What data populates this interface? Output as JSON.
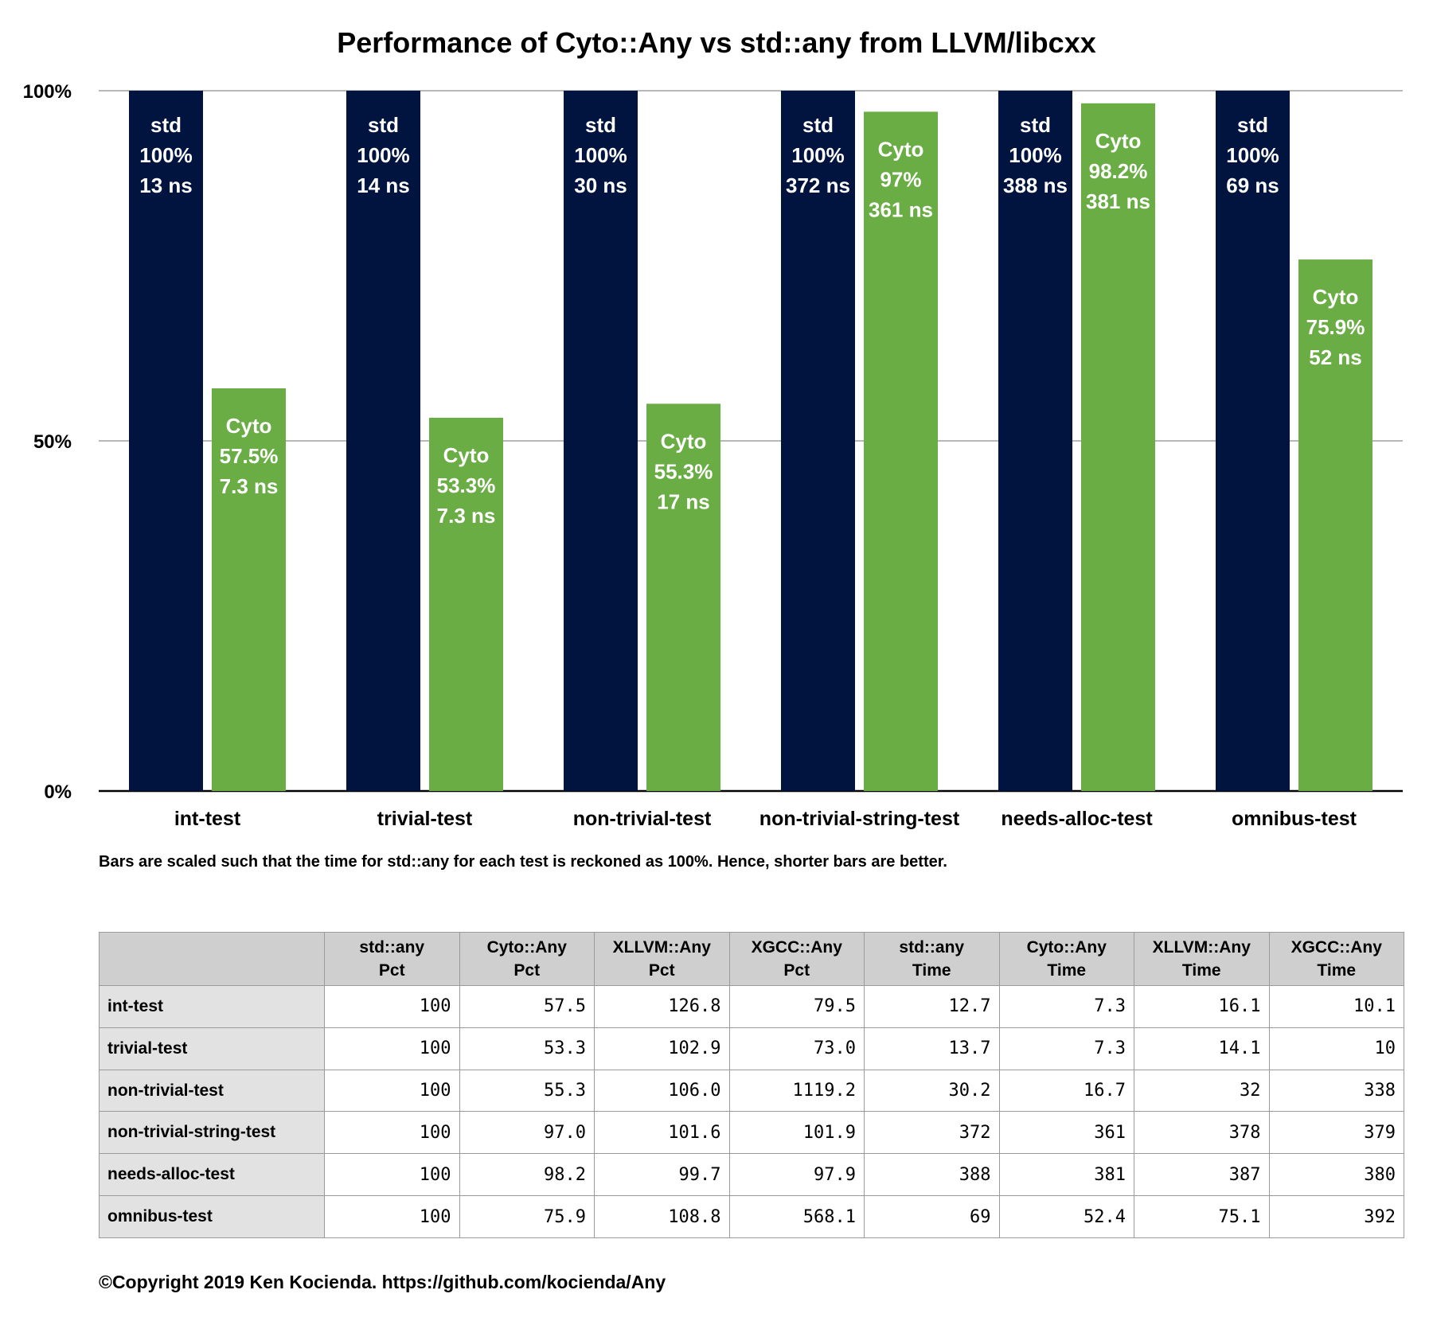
{
  "chart_data": {
    "type": "bar",
    "title": "Performance of Cyto::Any vs std::any from LLVM/libcxx",
    "categories": [
      "int-test",
      "trivial-test",
      "non-trivial-test",
      "non-trivial-string-test",
      "needs-alloc-test",
      "omnibus-test"
    ],
    "ylim": [
      0,
      100
    ],
    "yticks": [
      "0%",
      "50%",
      "100%"
    ],
    "grid": true,
    "series": [
      {
        "name": "std",
        "color": "#00143f",
        "values": [
          100,
          100,
          100,
          100,
          100,
          100
        ],
        "labels": [
          [
            "std",
            "100%",
            "13 ns"
          ],
          [
            "std",
            "100%",
            "14 ns"
          ],
          [
            "std",
            "100%",
            "30 ns"
          ],
          [
            "std",
            "100%",
            "372 ns"
          ],
          [
            "std",
            "100%",
            "388 ns"
          ],
          [
            "std",
            "100%",
            "69 ns"
          ]
        ]
      },
      {
        "name": "Cyto",
        "color": "#6aad45",
        "values": [
          57.5,
          53.3,
          55.3,
          97,
          98.2,
          75.9
        ],
        "labels": [
          [
            "Cyto",
            "57.5%",
            "7.3 ns"
          ],
          [
            "Cyto",
            "53.3%",
            "7.3 ns"
          ],
          [
            "Cyto",
            "55.3%",
            "17 ns"
          ],
          [
            "Cyto",
            "97%",
            "361 ns"
          ],
          [
            "Cyto",
            "98.2%",
            "381 ns"
          ],
          [
            "Cyto",
            "75.9%",
            "52 ns"
          ]
        ]
      }
    ]
  },
  "caption": "Bars are scaled such that the time for std::any for each test is reckoned as 100%. Hence, shorter bars are better.",
  "table": {
    "headers": [
      "",
      "std::any Pct",
      "Cyto::Any Pct",
      "XLLVM::Any Pct",
      "XGCC::Any Pct",
      "std::any Time",
      "Cyto::Any Time",
      "XLLVM::Any Time",
      "XGCC::Any Time"
    ],
    "rows": [
      [
        "int-test",
        "100",
        "57.5",
        "126.8",
        "79.5",
        "12.7",
        "7.3",
        "16.1",
        "10.1"
      ],
      [
        "trivial-test",
        "100",
        "53.3",
        "102.9",
        "73.0",
        "13.7",
        "7.3",
        "14.1",
        "10"
      ],
      [
        "non-trivial-test",
        "100",
        "55.3",
        "106.0",
        "1119.2",
        "30.2",
        "16.7",
        "32",
        "338"
      ],
      [
        "non-trivial-string-test",
        "100",
        "97.0",
        "101.6",
        "101.9",
        "372",
        "361",
        "378",
        "379"
      ],
      [
        "needs-alloc-test",
        "100",
        "98.2",
        "99.7",
        "97.9",
        "388",
        "381",
        "387",
        "380"
      ],
      [
        "omnibus-test",
        "100",
        "75.9",
        "108.8",
        "568.1",
        "69",
        "52.4",
        "75.1",
        "392"
      ]
    ]
  },
  "copyright": "©Copyright 2019 Ken Kocienda. https://github.com/kocienda/Any"
}
